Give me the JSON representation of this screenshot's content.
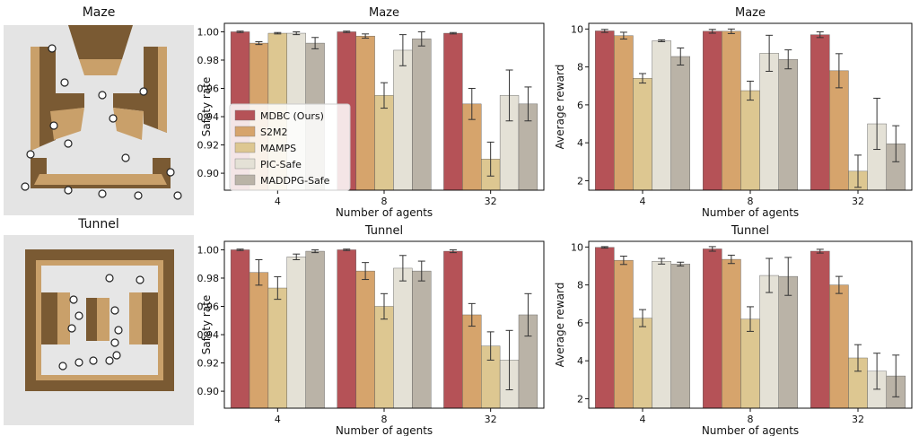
{
  "environments": [
    {
      "title": "Maze"
    },
    {
      "title": "Tunnel"
    }
  ],
  "colors": {
    "MDBC (Ours)": "#b55257",
    "S2M2": "#d6a46c",
    "MAMPS": "#ddc791",
    "PIC-Safe": "#e4e1d6",
    "MADDPG-Safe": "#bab3a7",
    "wall_dark": "#7a5a33",
    "wall_light": "#c9a06a",
    "floor": "#e6e6e6"
  },
  "chart_data": [
    {
      "type": "bar",
      "title": "Maze",
      "xlabel": "Number of agents",
      "ylabel": "Safety rate",
      "categories": [
        "4",
        "8",
        "32"
      ],
      "ylim": [
        0.888,
        1.006
      ],
      "yticks": [
        "0.90",
        "0.92",
        "0.94",
        "0.96",
        "0.98",
        "1.00"
      ],
      "legend": "center-left",
      "series": [
        {
          "name": "MDBC (Ours)",
          "values": [
            1.0,
            1.0,
            0.999
          ],
          "err": [
            0.0005,
            0.0005,
            0.0005
          ]
        },
        {
          "name": "S2M2",
          "values": [
            0.992,
            0.997,
            0.949
          ],
          "err": [
            0.001,
            0.0015,
            0.011
          ]
        },
        {
          "name": "MAMPS",
          "values": [
            0.999,
            0.955,
            0.91
          ],
          "err": [
            0.0005,
            0.009,
            0.012
          ]
        },
        {
          "name": "PIC-Safe",
          "values": [
            0.999,
            0.987,
            0.955
          ],
          "err": [
            0.001,
            0.011,
            0.018
          ]
        },
        {
          "name": "MADDPG-Safe",
          "values": [
            0.992,
            0.995,
            0.949
          ],
          "err": [
            0.004,
            0.005,
            0.012
          ]
        }
      ]
    },
    {
      "type": "bar",
      "title": "Maze",
      "xlabel": "Number of agents",
      "ylabel": "Average reward",
      "categories": [
        "4",
        "8",
        "32"
      ],
      "ylim": [
        1.5,
        10.3
      ],
      "yticks": [
        "2",
        "4",
        "6",
        "8",
        "10"
      ],
      "series": [
        {
          "name": "MDBC (Ours)",
          "values": [
            9.9,
            9.88,
            9.7
          ],
          "err": [
            0.08,
            0.1,
            0.15
          ]
        },
        {
          "name": "S2M2",
          "values": [
            9.65,
            9.88,
            7.8
          ],
          "err": [
            0.18,
            0.12,
            0.9
          ]
        },
        {
          "name": "MAMPS",
          "values": [
            7.4,
            6.75,
            2.5
          ],
          "err": [
            0.25,
            0.5,
            0.85
          ]
        },
        {
          "name": "PIC-Safe",
          "values": [
            9.38,
            8.72,
            5.0
          ],
          "err": [
            0.05,
            0.95,
            1.35
          ]
        },
        {
          "name": "MADDPG-Safe",
          "values": [
            8.55,
            8.4,
            3.95
          ],
          "err": [
            0.45,
            0.5,
            0.95
          ]
        }
      ]
    },
    {
      "type": "bar",
      "title": "Tunnel",
      "xlabel": "Number of agents",
      "ylabel": "Safety rate",
      "categories": [
        "4",
        "8",
        "32"
      ],
      "ylim": [
        0.888,
        1.006
      ],
      "yticks": [
        "0.90",
        "0.92",
        "0.94",
        "0.96",
        "0.98",
        "1.00"
      ],
      "series": [
        {
          "name": "MDBC (Ours)",
          "values": [
            1.0,
            1.0,
            0.999
          ],
          "err": [
            0.0005,
            0.0005,
            0.001
          ]
        },
        {
          "name": "S2M2",
          "values": [
            0.984,
            0.985,
            0.954
          ],
          "err": [
            0.009,
            0.006,
            0.008
          ]
        },
        {
          "name": "MAMPS",
          "values": [
            0.973,
            0.96,
            0.932
          ],
          "err": [
            0.008,
            0.009,
            0.01
          ]
        },
        {
          "name": "PIC-Safe",
          "values": [
            0.995,
            0.987,
            0.922
          ],
          "err": [
            0.002,
            0.009,
            0.021
          ]
        },
        {
          "name": "MADDPG-Safe",
          "values": [
            0.999,
            0.985,
            0.954
          ],
          "err": [
            0.001,
            0.007,
            0.015
          ]
        }
      ]
    },
    {
      "type": "bar",
      "title": "Tunnel",
      "xlabel": "Number of agents",
      "ylabel": "Average reward",
      "categories": [
        "4",
        "8",
        "32"
      ],
      "ylim": [
        1.5,
        10.3
      ],
      "yticks": [
        "2",
        "4",
        "6",
        "8",
        "10"
      ],
      "series": [
        {
          "name": "MDBC (Ours)",
          "values": [
            9.98,
            9.9,
            9.78
          ],
          "err": [
            0.04,
            0.12,
            0.1
          ]
        },
        {
          "name": "S2M2",
          "values": [
            9.3,
            9.35,
            8.0
          ],
          "err": [
            0.22,
            0.22,
            0.45
          ]
        },
        {
          "name": "MAMPS",
          "values": [
            6.25,
            6.2,
            4.15
          ],
          "err": [
            0.45,
            0.65,
            0.7
          ]
        },
        {
          "name": "PIC-Safe",
          "values": [
            9.25,
            8.5,
            3.45
          ],
          "err": [
            0.15,
            0.9,
            0.95
          ]
        },
        {
          "name": "MADDPG-Safe",
          "values": [
            9.1,
            8.45,
            3.2
          ],
          "err": [
            0.1,
            1.0,
            1.1
          ]
        }
      ]
    }
  ]
}
